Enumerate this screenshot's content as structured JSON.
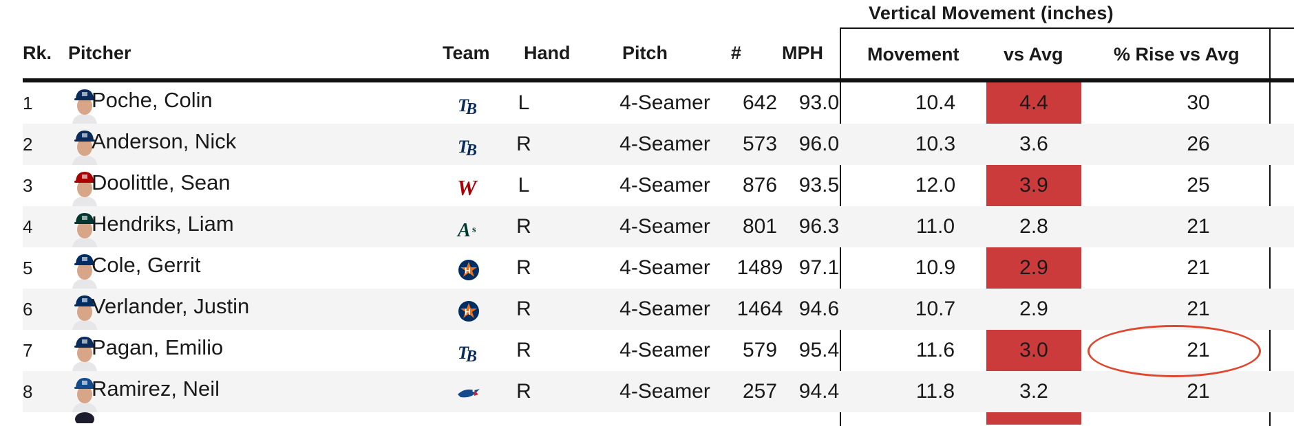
{
  "group_header": "Vertical Movement (inches)",
  "columns": {
    "rank": "Rk.",
    "pitcher": "Pitcher",
    "team": "Team",
    "hand": "Hand",
    "pitch": "Pitch",
    "count": "#",
    "mph": "MPH",
    "movement": "Movement",
    "vs_avg": "vs Avg",
    "rise_pct": "% Rise vs Avg"
  },
  "colors": {
    "vs_avg_highlight": "#cc3b3b",
    "annotation_circle": "#e0472f",
    "rays_navy": "#092c5c",
    "nationals_red": "#ab0003",
    "athletics_green": "#003831",
    "astros_navy": "#002d62",
    "astros_orange": "#eb6e1f",
    "bluejays_blue": "#134a8e"
  },
  "rows": [
    {
      "rank": "1",
      "name": "Poche, Colin",
      "team_icon": "rays-logo-icon",
      "hand": "L",
      "pitch": "4-Seamer",
      "count": "642",
      "mph": "93.0",
      "movement": "10.4",
      "vs_avg": "4.4",
      "rise": "30"
    },
    {
      "rank": "2",
      "name": "Anderson, Nick",
      "team_icon": "rays-logo-icon",
      "hand": "R",
      "pitch": "4-Seamer",
      "count": "573",
      "mph": "96.0",
      "movement": "10.3",
      "vs_avg": "3.6",
      "rise": "26"
    },
    {
      "rank": "3",
      "name": "Doolittle, Sean",
      "team_icon": "nationals-logo-icon",
      "hand": "L",
      "pitch": "4-Seamer",
      "count": "876",
      "mph": "93.5",
      "movement": "12.0",
      "vs_avg": "3.9",
      "rise": "25"
    },
    {
      "rank": "4",
      "name": "Hendriks, Liam",
      "team_icon": "athletics-logo-icon",
      "hand": "R",
      "pitch": "4-Seamer",
      "count": "801",
      "mph": "96.3",
      "movement": "11.0",
      "vs_avg": "2.8",
      "rise": "21"
    },
    {
      "rank": "5",
      "name": "Cole, Gerrit",
      "team_icon": "astros-logo-icon",
      "hand": "R",
      "pitch": "4-Seamer",
      "count": "1489",
      "mph": "97.1",
      "movement": "10.9",
      "vs_avg": "2.9",
      "rise": "21"
    },
    {
      "rank": "6",
      "name": "Verlander, Justin",
      "team_icon": "astros-logo-icon",
      "hand": "R",
      "pitch": "4-Seamer",
      "count": "1464",
      "mph": "94.6",
      "movement": "10.7",
      "vs_avg": "2.9",
      "rise": "21"
    },
    {
      "rank": "7",
      "name": "Pagan, Emilio",
      "team_icon": "rays-logo-icon",
      "hand": "R",
      "pitch": "4-Seamer",
      "count": "579",
      "mph": "95.4",
      "movement": "11.6",
      "vs_avg": "3.0",
      "rise": "21"
    },
    {
      "rank": "8",
      "name": "Ramirez, Neil",
      "team_icon": "bluejays-logo-icon",
      "hand": "R",
      "pitch": "4-Seamer",
      "count": "257",
      "mph": "94.4",
      "movement": "11.8",
      "vs_avg": "3.2",
      "rise": "21"
    }
  ]
}
